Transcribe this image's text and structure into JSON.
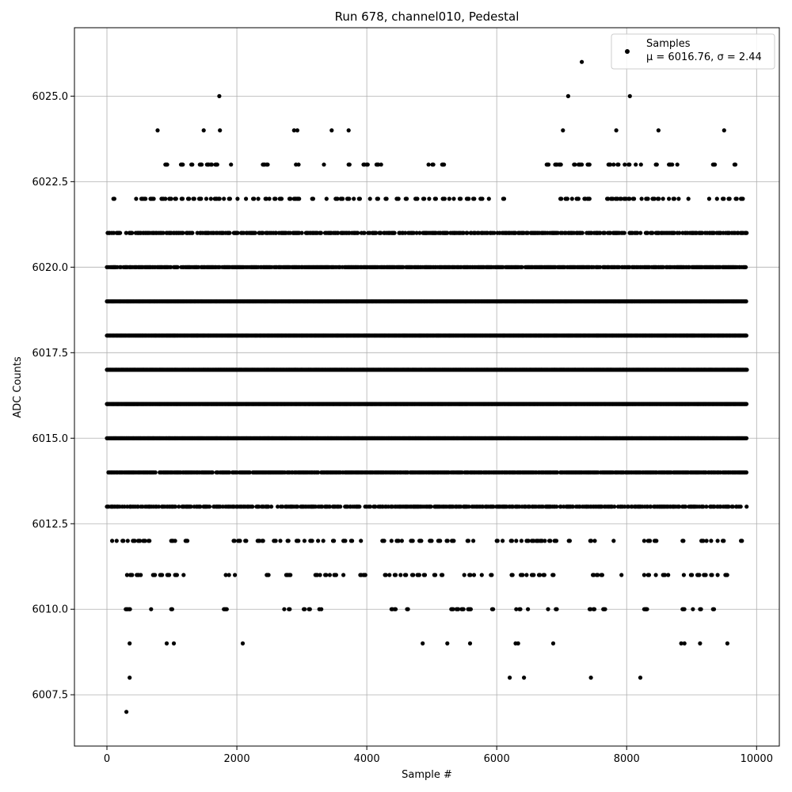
{
  "chart_data": {
    "type": "scatter",
    "title": "Run 678, channel010, Pedestal",
    "xlabel": "Sample #",
    "ylabel": "ADC Counts",
    "xlim": [
      -500,
      10350
    ],
    "ylim": [
      6006.0,
      6027.0
    ],
    "x_ticks": [
      0,
      2000,
      4000,
      6000,
      8000,
      10000
    ],
    "x_tick_labels": [
      "0",
      "2000",
      "4000",
      "6000",
      "8000",
      "10000"
    ],
    "y_ticks": [
      6007.5,
      6010.0,
      6012.5,
      6015.0,
      6017.5,
      6020.0,
      6022.5,
      6025.0
    ],
    "y_tick_labels": [
      "6007.5",
      "6010.0",
      "6012.5",
      "6015.0",
      "6017.5",
      "6020.0",
      "6022.5",
      "6025.0"
    ],
    "grid": true,
    "legend_position": "top-right",
    "series": [
      {
        "name": "Samples",
        "legend_line2": "μ = 6016.76, σ = 2.44",
        "color": "#000000",
        "marker": "circle",
        "sample_count": 9850,
        "mean": 6016.76,
        "std": 2.44,
        "dense_levels": [
          {
            "y": 6013,
            "x_range": [
              0,
              9850
            ]
          },
          {
            "y": 6014,
            "x_range": [
              0,
              9850
            ]
          },
          {
            "y": 6015,
            "x_range": [
              0,
              9850
            ]
          },
          {
            "y": 6016,
            "x_range": [
              0,
              9850
            ]
          },
          {
            "y": 6017,
            "x_range": [
              0,
              9850
            ]
          },
          {
            "y": 6018,
            "x_range": [
              0,
              9850
            ]
          },
          {
            "y": 6019,
            "x_range": [
              0,
              9850
            ]
          },
          {
            "y": 6020,
            "x_range": [
              0,
              9850
            ]
          },
          {
            "y": 6021,
            "x_range": [
              0,
              9850
            ]
          }
        ],
        "sparse_points": [
          {
            "x": 300,
            "y": 6007
          },
          {
            "x": 350,
            "y": 6008
          },
          {
            "x": 6200,
            "y": 6008
          },
          {
            "x": 6420,
            "y": 6008
          },
          {
            "x": 7450,
            "y": 6008
          },
          {
            "x": 8210,
            "y": 6008
          },
          {
            "x": 1730,
            "y": 6025
          },
          {
            "x": 7100,
            "y": 6025
          },
          {
            "x": 8050,
            "y": 6025
          },
          {
            "x": 7310,
            "y": 6026
          },
          {
            "x": 780,
            "y": 6024
          },
          {
            "x": 1490,
            "y": 6024
          },
          {
            "x": 1740,
            "y": 6024
          },
          {
            "x": 2880,
            "y": 6024
          },
          {
            "x": 2930,
            "y": 6024
          },
          {
            "x": 3460,
            "y": 6024
          },
          {
            "x": 3720,
            "y": 6024
          },
          {
            "x": 7020,
            "y": 6024
          },
          {
            "x": 7840,
            "y": 6024
          },
          {
            "x": 8490,
            "y": 6024
          },
          {
            "x": 9500,
            "y": 6024
          },
          {
            "x": 350,
            "y": 6009
          },
          {
            "x": 920,
            "y": 6009
          },
          {
            "x": 1030,
            "y": 6009
          },
          {
            "x": 2090,
            "y": 6009
          },
          {
            "x": 4860,
            "y": 6009
          },
          {
            "x": 5240,
            "y": 6009
          },
          {
            "x": 5590,
            "y": 6009
          },
          {
            "x": 6290,
            "y": 6009
          },
          {
            "x": 6330,
            "y": 6009
          },
          {
            "x": 6870,
            "y": 6009
          },
          {
            "x": 8840,
            "y": 6009
          },
          {
            "x": 8890,
            "y": 6009
          },
          {
            "x": 9130,
            "y": 6009
          },
          {
            "x": 9550,
            "y": 6009
          }
        ],
        "mid_levels": [
          {
            "y": 6010,
            "x": [
              290,
              340,
              680,
              990,
              1800,
              1830,
              2730,
              2800,
              3030,
              3110,
              3270,
              3300,
              4380,
              4430,
              4620,
              5300,
              5380,
              5460,
              5560,
              5600,
              5930,
              6300,
              6350,
              6480,
              6790,
              6910,
              7430,
              7490,
              7640,
              8270,
              8300,
              8860,
              9020,
              9130,
              9330
            ]
          },
          {
            "y": 6011,
            "x": [
              310,
              360,
              460,
              520,
              710,
              820,
              930,
              1050,
              1180,
              1830,
              1880,
              1970,
              2460,
              2760,
              2810,
              3210,
              3280,
              3360,
              3430,
              3500,
              3640,
              3900,
              3950,
              4280,
              4350,
              4430,
              4520,
              4590,
              4700,
              4780,
              4880,
              5040,
              5150,
              5500,
              5580,
              5650,
              5770,
              5910,
              6230,
              6370,
              6460,
              6540,
              6650,
              6720,
              6860,
              7480,
              7540,
              7610,
              7920,
              8270,
              8330,
              8450,
              8560,
              8640,
              8880,
              8990,
              9090,
              9190,
              9300,
              9400,
              9520
            ]
          },
          {
            "y": 6012,
            "x": [
              80,
              150,
              240,
              320,
              400,
              480,
              560,
              640,
              990,
              1050,
              1210,
              1950,
              2020,
              2130,
              2320,
              2390,
              2570,
              2670,
              2780,
              2920,
              3040,
              3130,
              3250,
              3330,
              3480,
              3640,
              3760,
              3910,
              4240,
              4380,
              4460,
              4540,
              4680,
              4810,
              4970,
              5100,
              5230,
              5310,
              5550,
              5640,
              6000,
              6090,
              6220,
              6300,
              6380,
              6460,
              6540,
              6610,
              6670,
              6740,
              6810,
              6890,
              7110,
              7440,
              7510,
              7800,
              8270,
              8330,
              8430,
              8860,
              9150,
              9230,
              9300,
              9400,
              9480,
              9760
            ]
          },
          {
            "y": 6022,
            "x": [
              100,
              450,
              530,
              580,
              670,
              720,
              840,
              900,
              960,
              1050,
              1150,
              1250,
              1330,
              1420,
              1530,
              1600,
              1660,
              1720,
              1800,
              1880,
              2010,
              2140,
              2250,
              2330,
              2440,
              2500,
              2580,
              2660,
              2810,
              2880,
              2930,
              3160,
              3380,
              3520,
              3600,
              3700,
              3800,
              3880,
              4050,
              4160,
              4290,
              4460,
              4600,
              4750,
              4870,
              4960,
              5050,
              5170,
              5270,
              5340,
              5430,
              5540,
              5640,
              5750,
              5880,
              6100,
              6980,
              7060,
              7160,
              7230,
              7350,
              7400,
              7700,
              7760,
              7830,
              7900,
              7960,
              8030,
              8100,
              8230,
              8300,
              8400,
              8480,
              8560,
              8650,
              8720,
              8800,
              8950,
              9270,
              9390,
              9480,
              9570,
              9680,
              9760
            ]
          },
          {
            "y": 6023,
            "x": [
              900,
              1140,
              1300,
              1430,
              1540,
              1600,
              1670,
              1910,
              2400,
              2460,
              2910,
              2950,
              3340,
              3720,
              3950,
              4000,
              4150,
              4220,
              4950,
              5010,
              5160,
              6770,
              6900,
              6960,
              7190,
              7260,
              7310,
              7400,
              7720,
              7800,
              7860,
              7970,
              8030,
              8140,
              8220,
              8450,
              8650,
              8700,
              8780,
              9330,
              9660
            ]
          }
        ]
      }
    ]
  }
}
